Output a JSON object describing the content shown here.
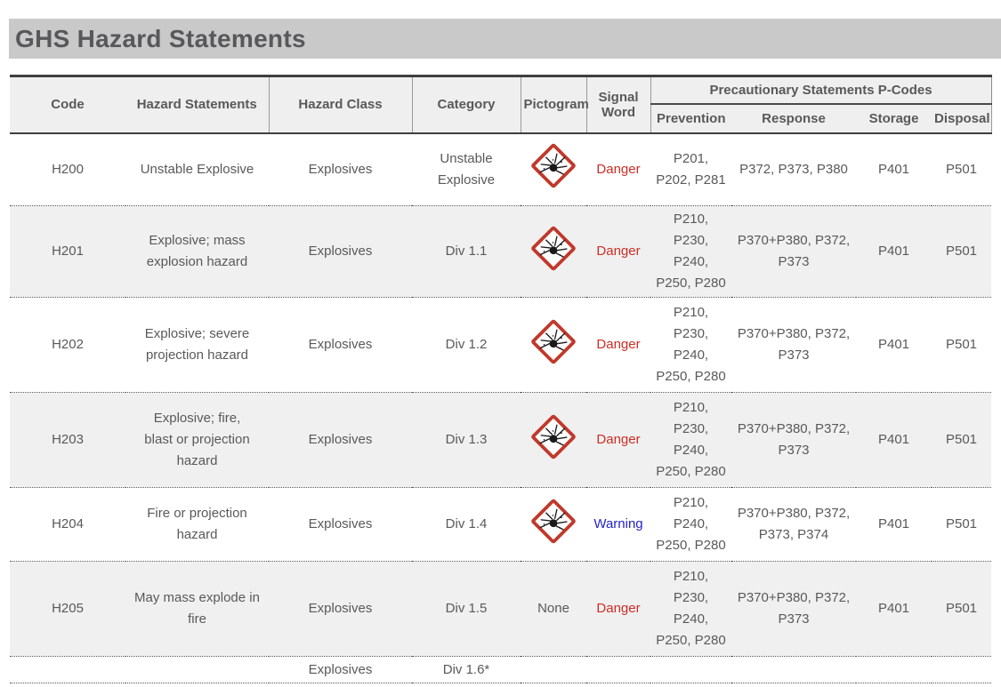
{
  "page": {
    "title": "GHS Hazard Statements"
  },
  "colors": {
    "danger": "#cc2e24",
    "warning": "#2323cc",
    "title_bg": "#c9c9c9",
    "header_bg": "#efefef",
    "row_alt_bg": "#f0f0f0",
    "text": "#595959",
    "pictogram_border": "#c0392b"
  },
  "table": {
    "headers": {
      "code": "Code",
      "hazard_statements": "Hazard Statements",
      "hazard_class": "Hazard Class",
      "category": "Category",
      "pictogram": "Pictogram",
      "signal_word": "Signal Word",
      "pcodes": "Precautionary Statements P-Codes",
      "prevention": "Prevention",
      "response": "Response",
      "storage": "Storage",
      "disposal": "Disposal"
    },
    "rows": [
      {
        "code": "H200",
        "hazard_statement": "Unstable Explosive",
        "hazard_class": "Explosives",
        "category": "Unstable\nExplosive",
        "pictogram": "exploding-bomb-icon",
        "signal_word": "Danger",
        "prevention": "P201,\nP202, P281",
        "response": "P372, P373, P380",
        "storage": "P401",
        "disposal": "P501"
      },
      {
        "code": "H201",
        "hazard_statement": "Explosive; mass\nexplosion hazard",
        "hazard_class": "Explosives",
        "category": "Div 1.1",
        "pictogram": "exploding-bomb-icon",
        "signal_word": "Danger",
        "prevention": "P210,\nP230,\nP240,\nP250, P280",
        "response": "P370+P380, P372,\nP373",
        "storage": "P401",
        "disposal": "P501"
      },
      {
        "code": "H202",
        "hazard_statement": "Explosive; severe\nprojection hazard",
        "hazard_class": "Explosives",
        "category": "Div 1.2",
        "pictogram": "exploding-bomb-icon",
        "signal_word": "Danger",
        "prevention": "P210,\nP230,\nP240,\nP250, P280",
        "response": "P370+P380, P372,\nP373",
        "storage": "P401",
        "disposal": "P501"
      },
      {
        "code": "H203",
        "hazard_statement": "Explosive; fire,\nblast or projection\nhazard",
        "hazard_class": "Explosives",
        "category": "Div 1.3",
        "pictogram": "exploding-bomb-icon",
        "signal_word": "Danger",
        "prevention": "P210,\nP230,\nP240,\nP250, P280",
        "response": "P370+P380, P372,\nP373",
        "storage": "P401",
        "disposal": "P501"
      },
      {
        "code": "H204",
        "hazard_statement": "Fire or projection\nhazard",
        "hazard_class": "Explosives",
        "category": "Div 1.4",
        "pictogram": "exploding-bomb-icon",
        "signal_word": "Warning",
        "prevention": "P210,\nP240,\nP250, P280",
        "response": "P370+P380, P372,\nP373, P374",
        "storage": "P401",
        "disposal": "P501"
      },
      {
        "code": "H205",
        "hazard_statement": "May mass explode in\nfire",
        "hazard_class": "Explosives",
        "category": "Div 1.5",
        "pictogram": "None",
        "signal_word": "Danger",
        "prevention": "P210,\nP230,\nP240,\nP250, P280",
        "response": "P370+P380, P372,\nP373",
        "storage": "P401",
        "disposal": "P501"
      },
      {
        "code": "",
        "hazard_statement": "",
        "hazard_class": "Explosives",
        "category": "Div 1.6*",
        "pictogram": "",
        "signal_word": "",
        "prevention": "",
        "response": "",
        "storage": "",
        "disposal": ""
      }
    ]
  }
}
